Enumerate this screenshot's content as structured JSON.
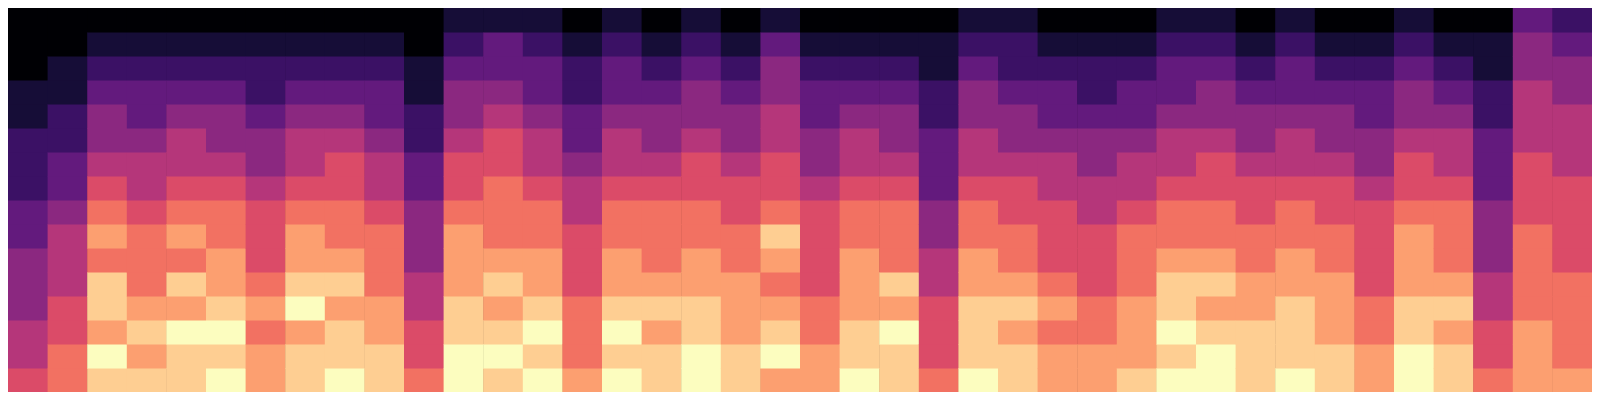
{
  "chart_data": {
    "type": "heatmap",
    "tick_labels": false,
    "xlim": [
      0,
      40
    ],
    "ylim": [
      0,
      16
    ],
    "zlim": [
      0,
      10
    ],
    "cells": [
      [
        6,
        5,
        5,
        4,
        4,
        4,
        3,
        3,
        2,
        2,
        2,
        1,
        1,
        0,
        0,
        0
      ],
      [
        7,
        7,
        6,
        6,
        5,
        5,
        5,
        4,
        3,
        3,
        2,
        2,
        1,
        1,
        0,
        0
      ],
      [
        9,
        10,
        8,
        9,
        9,
        7,
        8,
        7,
        6,
        5,
        4,
        4,
        3,
        2,
        1,
        0
      ],
      [
        9,
        8,
        9,
        8,
        7,
        7,
        7,
        6,
        5,
        5,
        4,
        3,
        3,
        2,
        1,
        0
      ],
      [
        9,
        9,
        10,
        8,
        9,
        7,
        8,
        7,
        6,
        5,
        5,
        4,
        3,
        2,
        1,
        0
      ],
      [
        10,
        9,
        10,
        9,
        8,
        8,
        7,
        7,
        6,
        5,
        4,
        4,
        3,
        2,
        1,
        0
      ],
      [
        8,
        8,
        7,
        8,
        7,
        6,
        6,
        6,
        5,
        4,
        4,
        3,
        2,
        2,
        1,
        0
      ],
      [
        9,
        9,
        8,
        10,
        9,
        8,
        8,
        7,
        6,
        5,
        5,
        4,
        3,
        2,
        1,
        0
      ],
      [
        10,
        9,
        9,
        8,
        9,
        8,
        7,
        7,
        6,
        6,
        5,
        4,
        3,
        2,
        1,
        0
      ],
      [
        9,
        9,
        8,
        8,
        7,
        7,
        7,
        6,
        5,
        5,
        4,
        3,
        3,
        2,
        1,
        0
      ],
      [
        7,
        6,
        6,
        5,
        5,
        4,
        4,
        4,
        3,
        3,
        2,
        2,
        1,
        1,
        0,
        0
      ],
      [
        10,
        10,
        9,
        9,
        8,
        8,
        8,
        7,
        6,
        6,
        5,
        4,
        4,
        3,
        2,
        1
      ],
      [
        9,
        10,
        9,
        8,
        9,
        8,
        7,
        7,
        7,
        6,
        6,
        5,
        4,
        3,
        3,
        1
      ],
      [
        10,
        9,
        10,
        9,
        8,
        8,
        7,
        7,
        6,
        5,
        5,
        4,
        3,
        3,
        2,
        1
      ],
      [
        8,
        7,
        7,
        7,
        6,
        6,
        6,
        5,
        5,
        4,
        3,
        3,
        2,
        2,
        1,
        0
      ],
      [
        10,
        9,
        10,
        9,
        8,
        8,
        7,
        7,
        6,
        5,
        5,
        4,
        3,
        3,
        2,
        1
      ],
      [
        9,
        9,
        8,
        9,
        8,
        7,
        7,
        7,
        6,
        5,
        4,
        4,
        3,
        2,
        1,
        0
      ],
      [
        10,
        10,
        9,
        9,
        8,
        8,
        7,
        7,
        6,
        6,
        5,
        4,
        4,
        3,
        2,
        1
      ],
      [
        9,
        9,
        8,
        8,
        8,
        7,
        7,
        6,
        6,
        5,
        4,
        4,
        3,
        2,
        1,
        0
      ],
      [
        8,
        10,
        9,
        8,
        7,
        8,
        9,
        7,
        6,
        6,
        5,
        5,
        4,
        4,
        3,
        1
      ],
      [
        8,
        8,
        7,
        7,
        6,
        6,
        6,
        6,
        5,
        4,
        4,
        3,
        3,
        2,
        1,
        0
      ],
      [
        10,
        9,
        9,
        8,
        8,
        8,
        7,
        7,
        6,
        5,
        5,
        4,
        3,
        2,
        1,
        0
      ],
      [
        9,
        9,
        10,
        8,
        9,
        7,
        7,
        7,
        6,
        5,
        4,
        4,
        3,
        2,
        1,
        0
      ],
      [
        7,
        6,
        6,
        6,
        5,
        5,
        4,
        4,
        3,
        3,
        3,
        2,
        2,
        1,
        1,
        0
      ],
      [
        10,
        9,
        9,
        9,
        8,
        8,
        7,
        7,
        6,
        5,
        5,
        4,
        4,
        3,
        2,
        1
      ],
      [
        9,
        9,
        8,
        9,
        8,
        7,
        7,
        6,
        6,
        5,
        4,
        4,
        3,
        2,
        2,
        1
      ],
      [
        8,
        8,
        7,
        8,
        7,
        6,
        6,
        6,
        5,
        5,
        4,
        3,
        3,
        2,
        1,
        0
      ],
      [
        8,
        8,
        7,
        7,
        6,
        6,
        6,
        5,
        5,
        4,
        4,
        3,
        2,
        2,
        1,
        0
      ],
      [
        9,
        8,
        8,
        8,
        7,
        7,
        7,
        6,
        5,
        5,
        4,
        3,
        3,
        2,
        1,
        0
      ],
      [
        10,
        9,
        10,
        9,
        9,
        8,
        7,
        7,
        6,
        5,
        5,
        4,
        3,
        3,
        2,
        1
      ],
      [
        10,
        10,
        9,
        8,
        9,
        8,
        7,
        7,
        6,
        6,
        5,
        4,
        4,
        3,
        2,
        1
      ],
      [
        9,
        9,
        9,
        8,
        8,
        7,
        7,
        6,
        6,
        5,
        4,
        4,
        3,
        2,
        1,
        0
      ],
      [
        10,
        9,
        9,
        9,
        8,
        8,
        7,
        7,
        6,
        5,
        5,
        4,
        3,
        3,
        2,
        1
      ],
      [
        9,
        9,
        8,
        8,
        8,
        7,
        7,
        6,
        6,
        5,
        4,
        4,
        3,
        2,
        1,
        0
      ],
      [
        8,
        8,
        7,
        7,
        6,
        6,
        6,
        6,
        5,
        4,
        4,
        3,
        3,
        2,
        1,
        0
      ],
      [
        10,
        10,
        9,
        9,
        8,
        8,
        8,
        7,
        6,
        6,
        5,
        4,
        4,
        3,
        2,
        1
      ],
      [
        9,
        9,
        8,
        9,
        8,
        7,
        7,
        7,
        6,
        5,
        5,
        4,
        3,
        2,
        1,
        0
      ],
      [
        7,
        6,
        6,
        5,
        5,
        4,
        4,
        4,
        3,
        3,
        3,
        2,
        2,
        1,
        1,
        0
      ],
      [
        8,
        8,
        8,
        7,
        7,
        7,
        7,
        6,
        6,
        6,
        5,
        5,
        5,
        4,
        4,
        3
      ],
      [
        8,
        7,
        7,
        7,
        7,
        6,
        6,
        6,
        6,
        5,
        5,
        5,
        4,
        4,
        3,
        2
      ]
    ]
  }
}
